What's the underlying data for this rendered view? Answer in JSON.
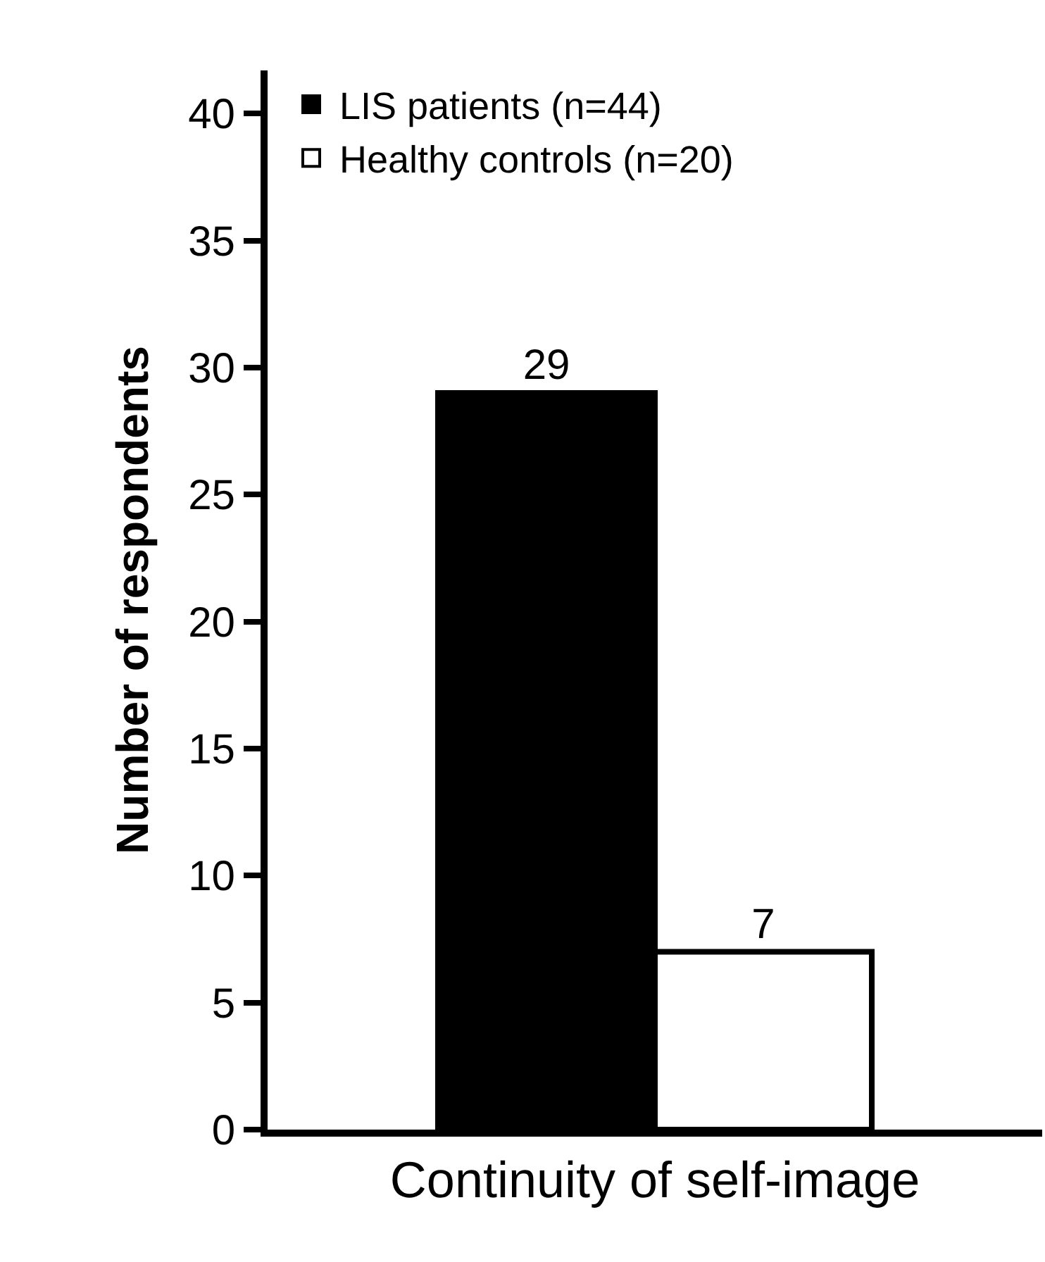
{
  "chart_data": {
    "type": "bar",
    "ylabel": "Number of respondents",
    "categories": [
      "Continuity of self-image"
    ],
    "series": [
      {
        "name": "LIS patients (n=44)",
        "color": "#000000",
        "values": [
          29
        ]
      },
      {
        "name": "Healthy controls (n=20)",
        "color": "#ffffff",
        "values": [
          7
        ]
      }
    ],
    "ylim": [
      0,
      41.7
    ],
    "yticks": [
      0,
      5,
      10,
      15,
      20,
      25,
      30,
      35,
      40
    ],
    "data_labels": true,
    "legend": "top left"
  }
}
